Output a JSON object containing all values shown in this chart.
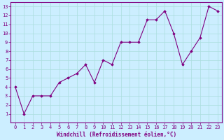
{
  "x": [
    0,
    1,
    2,
    3,
    4,
    5,
    6,
    7,
    8,
    9,
    10,
    11,
    12,
    13,
    14,
    15,
    16,
    17,
    18,
    19,
    20,
    21,
    22,
    23
  ],
  "y": [
    4,
    1,
    3,
    3,
    3,
    4.5,
    5,
    5.5,
    6.5,
    4.5,
    7,
    6.5,
    9,
    9,
    9,
    11.5,
    11.5,
    12.5,
    10,
    6.5,
    8,
    9.5,
    13,
    12.5
  ],
  "line_color": "#800080",
  "marker": "D",
  "marker_size": 1.8,
  "line_width": 0.8,
  "bg_color": "#cceeff",
  "grid_color": "#aadddd",
  "xlabel": "Windchill (Refroidissement éolien,°C)",
  "xlim_min": -0.5,
  "xlim_max": 23.5,
  "ylim_min": 0,
  "ylim_max": 13.5,
  "xticks": [
    0,
    1,
    2,
    3,
    4,
    5,
    6,
    7,
    8,
    9,
    10,
    11,
    12,
    13,
    14,
    15,
    16,
    17,
    18,
    19,
    20,
    21,
    22,
    23
  ],
  "yticks": [
    1,
    2,
    3,
    4,
    5,
    6,
    7,
    8,
    9,
    10,
    11,
    12,
    13
  ],
  "tick_label_size": 5.0,
  "xlabel_size": 5.5,
  "label_color": "#800080",
  "axis_color": "#800080"
}
